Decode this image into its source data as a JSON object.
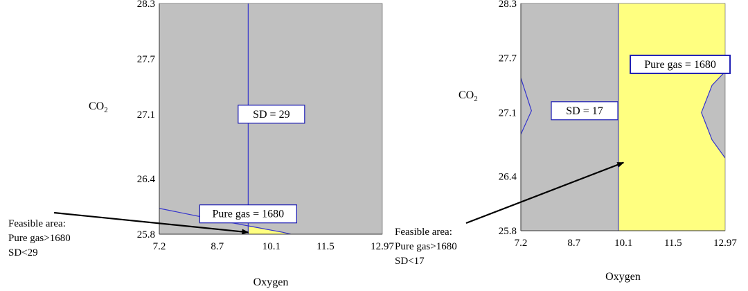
{
  "chart_data": [
    {
      "type": "contour",
      "xlabel": "Oxygen",
      "ylabel": "CO2",
      "xlim": [
        7.2,
        12.97
      ],
      "ylim": [
        25.8,
        28.3
      ],
      "x_ticks": [
        "7.2",
        "8.7",
        "10.1",
        "11.5",
        "12.97"
      ],
      "y_ticks": [
        "25.8",
        "26.4",
        "27.1",
        "27.7",
        "28.3"
      ],
      "colors": {
        "infeasible": "#c0c0c0",
        "feasible": "#ffff80",
        "contour": "#3333cc",
        "label_border": "#1a1ab3"
      },
      "contours": [
        {
          "label": "SD = 29",
          "label_at": [
            10.1,
            27.1
          ],
          "points": [
            [
              9.5,
              28.3
            ],
            [
              9.5,
              25.8
            ]
          ]
        },
        {
          "label": "Pure gas = 1680",
          "label_at": [
            9.5,
            26.02
          ],
          "points": [
            [
              7.2,
              26.08
            ],
            [
              8.5,
              25.97
            ],
            [
              9.5,
              25.89
            ],
            [
              10.4,
              25.82
            ],
            [
              10.6,
              25.8
            ]
          ]
        }
      ],
      "feasible_region": [
        [
          9.5,
          25.89
        ],
        [
          10.4,
          25.82
        ],
        [
          10.6,
          25.8
        ],
        [
          9.5,
          25.8
        ]
      ],
      "annotation": {
        "lines": [
          "Feasible area:",
          "Pure gas>1680",
          "SD<29"
        ],
        "arrow_to": [
          9.5,
          25.82
        ]
      }
    },
    {
      "type": "contour",
      "xlabel": "Oxygen",
      "ylabel": "CO2",
      "xlim": [
        7.2,
        12.97
      ],
      "ylim": [
        25.8,
        28.3
      ],
      "x_ticks": [
        "7.2",
        "8.7",
        "10.1",
        "11.5",
        "12.97"
      ],
      "y_ticks": [
        "25.8",
        "26.4",
        "27.1",
        "27.7",
        "28.3"
      ],
      "colors": {
        "infeasible": "#c0c0c0",
        "feasible": "#ffff80",
        "contour": "#3333cc",
        "label_border": "#1a1ab3"
      },
      "contours": [
        {
          "label": "SD = 17",
          "label_at": [
            9.0,
            27.12
          ],
          "points": [
            [
              9.95,
              28.3
            ],
            [
              9.95,
              25.8
            ]
          ]
        },
        {
          "label": "Pure gas = 1680",
          "label_at": [
            11.7,
            27.63
          ],
          "points": [
            [
              12.97,
              27.55
            ],
            [
              12.6,
              27.4
            ],
            [
              12.3,
              27.1
            ],
            [
              12.6,
              26.8
            ],
            [
              12.97,
              26.6
            ]
          ]
        },
        {
          "label": "",
          "label_at": null,
          "points": [
            [
              7.2,
              27.48
            ],
            [
              7.5,
              27.12
            ],
            [
              7.2,
              26.86
            ]
          ]
        }
      ],
      "feasible_region": [
        [
          9.95,
          28.3
        ],
        [
          12.97,
          28.3
        ],
        [
          12.97,
          27.55
        ],
        [
          12.6,
          27.4
        ],
        [
          12.3,
          27.1
        ],
        [
          12.6,
          26.8
        ],
        [
          12.97,
          26.6
        ],
        [
          12.97,
          25.8
        ],
        [
          9.95,
          25.8
        ]
      ],
      "annotation": {
        "lines": [
          "Feasible area:",
          "Pure gas>1680",
          "SD<17"
        ],
        "arrow_to": [
          10.1,
          26.55
        ]
      }
    }
  ]
}
